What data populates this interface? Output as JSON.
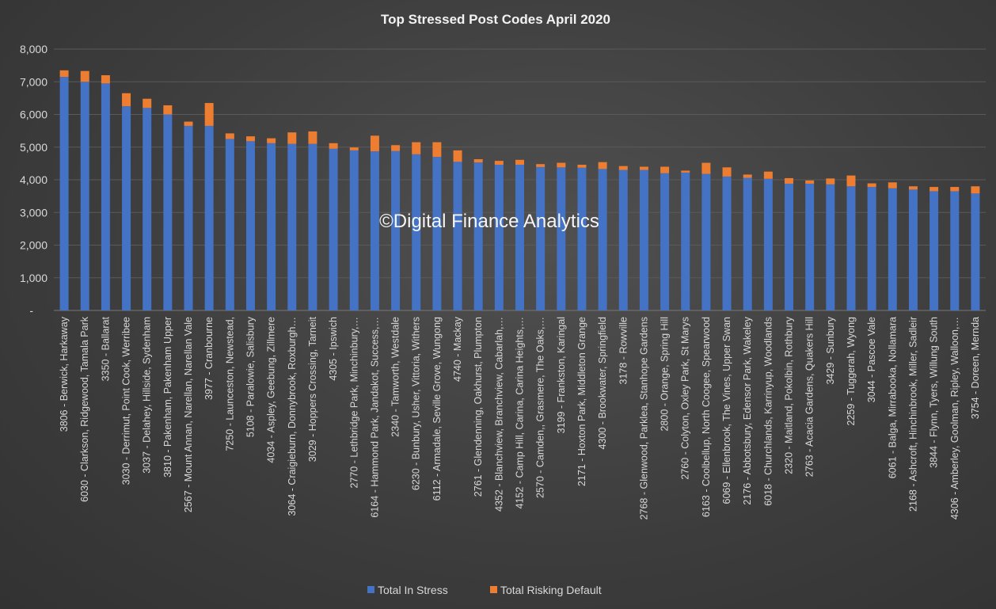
{
  "chart_data": {
    "type": "bar",
    "stacked": true,
    "title": "Top Stressed Post Codes April 2020",
    "watermark": "©Digital Finance Analytics",
    "xlabel": "",
    "ylabel": "",
    "ylim": [
      0,
      8000
    ],
    "yticks": [
      "-",
      "1,000",
      "2,000",
      "3,000",
      "4,000",
      "5,000",
      "6,000",
      "7,000",
      "8,000"
    ],
    "grid": true,
    "legend_position": "bottom",
    "colors": {
      "Total In Stress": "#4472c4",
      "Total Risking Default": "#ed7d31"
    },
    "categories": [
      "3806 - Berwick, Harkaway",
      "6030 - Clarkson, Ridgewood, Tamala Park",
      "3350 - Ballarat",
      "3030 - Derrimut, Point Cook, Werribee",
      "3037 - Delahey, Hillside, Sydenham",
      "3810 - Pakenham, Pakenham Upper",
      "2567 - Mount Annan, Narellan, Narellan Vale",
      "3977 - Cranbourne",
      "7250 - Launceston, Newstead,",
      "5108 - Paralowie, Salisbury",
      "4034 - Aspley, Geebung, Zillmere",
      "3064 - Craigieburn, Donnybrook, Roxburgh…",
      "3029 - Hoppers Crossing, Tarneit",
      "4305 - Ipswich",
      "2770 - Lethbridge Park, Minchinbury,…",
      "6164 - Hammond Park, Jandakot, Success,…",
      "2340 - Tamworth, Westdale",
      "6230 - Bunbury, Usher, Vittoria, Withers",
      "6112 - Armadale, Seville Grove, Wungong",
      "4740 - Mackay",
      "2761 - Glendenning, Oakhurst, Plumpton",
      "4352 - Blanchview, Branchview, Cabarlah,…",
      "4152 - Camp Hill, Carina, Carina Heights,…",
      "2570 - Camden,, Grasmere, The Oaks,…",
      "3199 - Frankston, Karingal",
      "2171 - Hoxton Park, Middleton Grange",
      "4300 - Brookwater, Springfield",
      "3178 - Rowville",
      "2768 - Glenwood, Parklea, Stanhope Gardens",
      "2800 - Orange, Spring Hill",
      "2760 - Colyton, Oxley Park, St Marys",
      "6163 - Coolbellup, North Coogee, Spearwood",
      "6069 - Ellenbrook, The Vines, Upper Swan",
      "2176 - Abbotsbury, Edensor Park, Wakeley",
      "6018 - Churchlands, Karrinyup, Woodlands",
      "2320 - Maitland, Pokolbin, Rothbury",
      "2763 - Acacia Gardens, Quakers Hill",
      "3429 - Sunbury",
      "2259 - Tuggerah, Wyong",
      "3044 - Pascoe Vale",
      "6061 - Balga, Mirrabooka, Nollamara",
      "2168 - Ashcroft, Hinchinbrook, Miller, Sadleir",
      "3844 - Flynn, Tyers, Willung South",
      "4306 - Amberley, Goolman, Ripley, Walloon,…",
      "3754 - Doreen, Mernda"
    ],
    "series": [
      {
        "name": "Total In Stress",
        "values": [
          7150,
          7000,
          6950,
          6250,
          6200,
          6000,
          5650,
          5650,
          5250,
          5180,
          5120,
          5100,
          5100,
          4950,
          4900,
          4870,
          4880,
          4780,
          4700,
          4550,
          4530,
          4460,
          4460,
          4390,
          4380,
          4370,
          4330,
          4300,
          4300,
          4200,
          4220,
          4180,
          4100,
          4060,
          4030,
          3880,
          3880,
          3860,
          3800,
          3780,
          3740,
          3700,
          3650,
          3650,
          3580
        ]
      },
      {
        "name": "Total Risking Default",
        "values": [
          200,
          330,
          250,
          400,
          280,
          280,
          130,
          700,
          170,
          150,
          150,
          350,
          380,
          170,
          90,
          480,
          180,
          370,
          450,
          350,
          100,
          120,
          150,
          90,
          140,
          90,
          210,
          120,
          100,
          200,
          60,
          340,
          280,
          100,
          220,
          170,
          100,
          180,
          330,
          110,
          180,
          100,
          130,
          130,
          220
        ]
      }
    ]
  }
}
